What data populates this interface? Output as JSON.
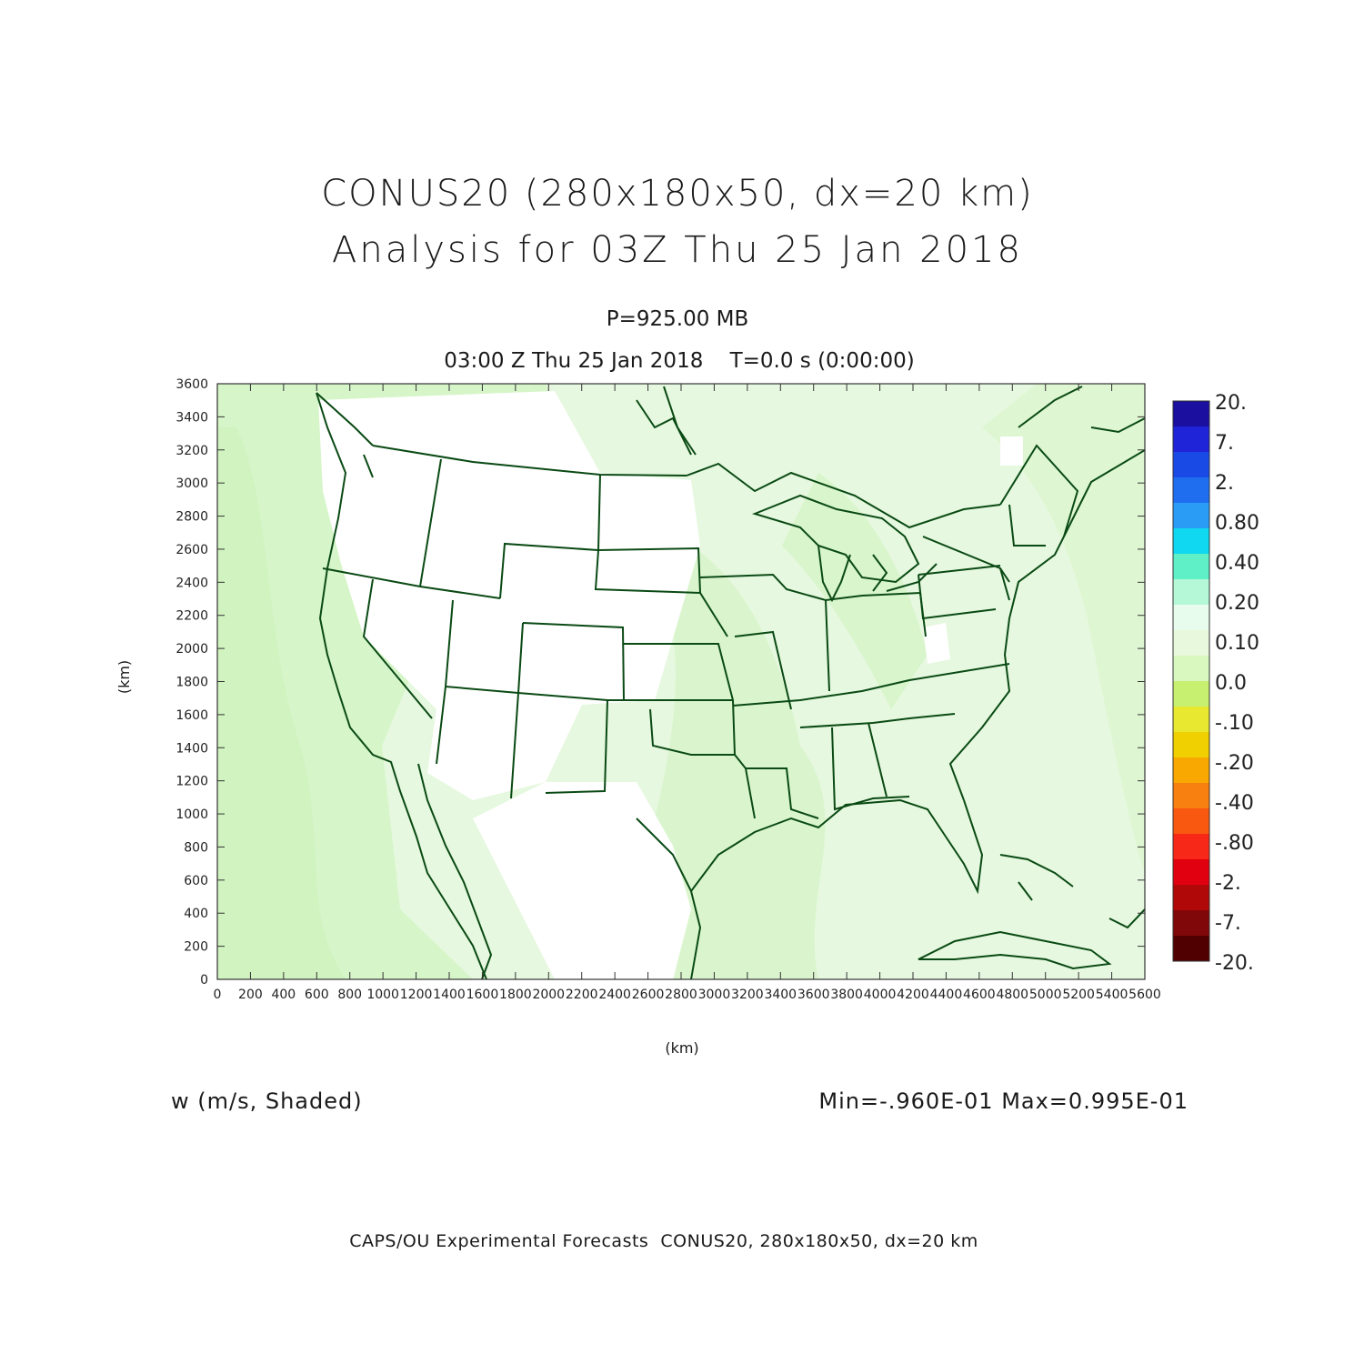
{
  "titles": {
    "line1": "CONUS20 (280x180x50, dx=20 km)",
    "line2": "Analysis for 03Z Thu 25 Jan 2018",
    "level": "P=925.00 MB",
    "valid_time": "03:00 Z Thu 25 Jan 2018    T=0.0 s (0:00:00)"
  },
  "axes": {
    "xlabel": "(km)",
    "ylabel": "(km)",
    "x_ticks": [
      "0",
      "200",
      "400",
      "600",
      "800",
      "1000",
      "1200",
      "1400",
      "1600",
      "1800",
      "2000",
      "2200",
      "2400",
      "2600",
      "2800",
      "3000",
      "3200",
      "3400",
      "3600",
      "3800",
      "4000",
      "4200",
      "4400",
      "4600",
      "4800",
      "5000",
      "5200",
      "5400",
      "5600"
    ],
    "y_ticks": [
      "0",
      "200",
      "400",
      "600",
      "800",
      "1000",
      "1200",
      "1400",
      "1600",
      "1800",
      "2000",
      "2200",
      "2400",
      "2600",
      "2800",
      "3000",
      "3200",
      "3400",
      "3600"
    ]
  },
  "colorbar": {
    "labels": [
      "20.",
      "7.",
      "2.",
      "0.80",
      "0.40",
      "0.20",
      "0.10",
      "0.0",
      "-.10",
      "-.20",
      "-.40",
      "-.80",
      "-2.",
      "-7.",
      "-20."
    ],
    "colors": [
      "#1a0f9e",
      "#1f24d8",
      "#1a4ae6",
      "#1f6ef0",
      "#2a9cf5",
      "#10d8f0",
      "#5ff0c8",
      "#b4f8d8",
      "#e8fcee",
      "#e8f8dc",
      "#d8f8c0",
      "#c8f070",
      "#e8e830",
      "#f0d000",
      "#f8a800",
      "#f88010",
      "#f85810",
      "#f82818",
      "#e00010",
      "#b00808",
      "#800808",
      "#500000"
    ]
  },
  "annotations": {
    "field": "w (m/s, Shaded)",
    "minmax": "Min=-.960E-01 Max=0.995E-01",
    "footer": "CAPS/OU Experimental Forecasts  CONUS20, 280x180x50, dx=20 km"
  },
  "map": {
    "domain_km": {
      "x": [
        0,
        5600
      ],
      "y": [
        0,
        3600
      ]
    },
    "boundary_color": "#0a4a14",
    "shade_light": "#e6f8df",
    "shade_mid": "#d6f5c8"
  }
}
